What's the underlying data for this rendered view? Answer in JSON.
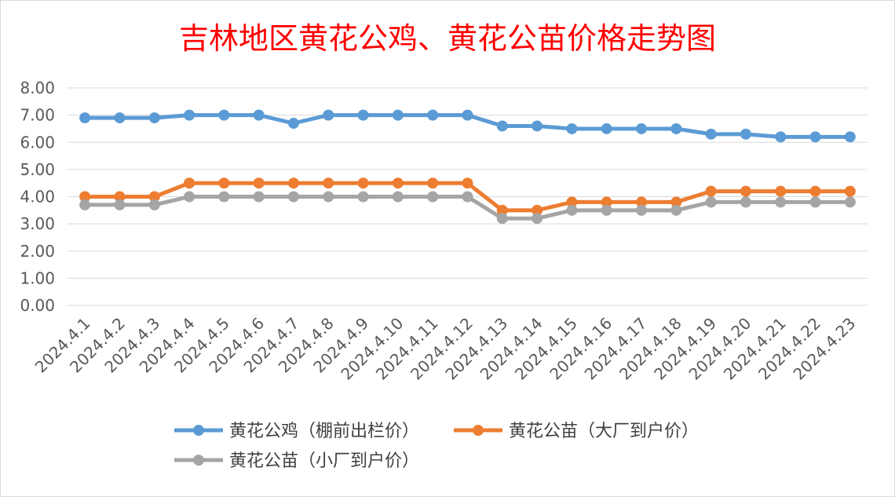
{
  "chart_data": {
    "type": "line",
    "title": "吉林地区黄花公鸡、黄花公苗价格走势图",
    "xlabel": "",
    "ylabel": "",
    "ylim": [
      0,
      8
    ],
    "yticks": [
      "0.00",
      "1.00",
      "2.00",
      "3.00",
      "4.00",
      "5.00",
      "6.00",
      "7.00",
      "8.00"
    ],
    "grid": true,
    "legend_position": "bottom",
    "categories": [
      "2024.4.1",
      "2024.4.2",
      "2024.4.3",
      "2024.4.4",
      "2024.4.5",
      "2024.4.6",
      "2024.4.7",
      "2024.4.8",
      "2024.4.9",
      "2024.4.10",
      "2024.4.11",
      "2024.4.12",
      "2024.4.13",
      "2024.4.14",
      "2024.4.15",
      "2024.4.16",
      "2024.4.17",
      "2024.4.18",
      "2024.4.19",
      "2024.4.20",
      "2024.4.21",
      "2024.4.22",
      "2024.4.23"
    ],
    "series": [
      {
        "name": "黄花公鸡（棚前出栏价）",
        "color": "#5b9bd5",
        "values": [
          6.9,
          6.9,
          6.9,
          7.0,
          7.0,
          7.0,
          6.7,
          7.0,
          7.0,
          7.0,
          7.0,
          7.0,
          6.6,
          6.6,
          6.5,
          6.5,
          6.5,
          6.5,
          6.3,
          6.3,
          6.2,
          6.2,
          6.2
        ]
      },
      {
        "name": "黄花公苗（大厂到户价）",
        "color": "#ed7d31",
        "values": [
          4.0,
          4.0,
          4.0,
          4.5,
          4.5,
          4.5,
          4.5,
          4.5,
          4.5,
          4.5,
          4.5,
          4.5,
          3.5,
          3.5,
          3.8,
          3.8,
          3.8,
          3.8,
          4.2,
          4.2,
          4.2,
          4.2,
          4.2
        ]
      },
      {
        "name": "黄花公苗（小厂到户价）",
        "color": "#a5a5a5",
        "values": [
          3.7,
          3.7,
          3.7,
          4.0,
          4.0,
          4.0,
          4.0,
          4.0,
          4.0,
          4.0,
          4.0,
          4.0,
          3.2,
          3.2,
          3.5,
          3.5,
          3.5,
          3.5,
          3.8,
          3.8,
          3.8,
          3.8,
          3.8
        ]
      }
    ]
  }
}
